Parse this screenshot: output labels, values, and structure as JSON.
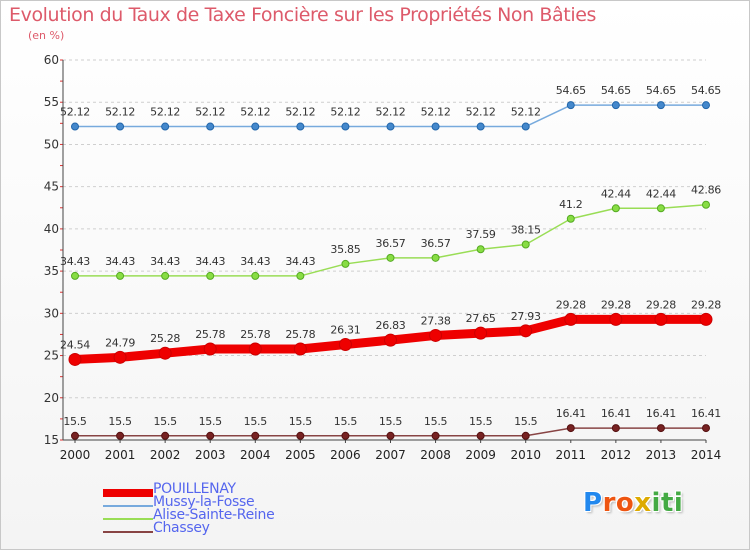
{
  "title": "Evolution du Taux de Taxe Foncière sur les Propriétés Non Bâties",
  "unit_label": "(en %)",
  "chart_data": {
    "type": "line",
    "title": "Evolution du Taux de Taxe Foncière sur les Propriétés Non Bâties",
    "ylabel": "(en %)",
    "xlabel": "",
    "x": [
      "2000",
      "2001",
      "2002",
      "2003",
      "2004",
      "2005",
      "2006",
      "2007",
      "2008",
      "2009",
      "2010",
      "2011",
      "2012",
      "2013",
      "2014"
    ],
    "ylim": [
      15,
      60
    ],
    "yticks": [
      15,
      20,
      25,
      30,
      35,
      40,
      45,
      50,
      55,
      60
    ],
    "grid": "horizontal-dashed",
    "series": [
      {
        "name": "POUILLENAY",
        "color": "#ee0000",
        "values": [
          24.54,
          24.79,
          25.28,
          25.78,
          25.78,
          25.78,
          26.31,
          26.83,
          27.38,
          27.65,
          27.93,
          29.28,
          29.28,
          29.28,
          29.28
        ]
      },
      {
        "name": "Mussy-la-Fosse",
        "color": "#77aadd",
        "values": [
          52.12,
          52.12,
          52.12,
          52.12,
          52.12,
          52.12,
          52.12,
          52.12,
          52.12,
          52.12,
          52.12,
          54.65,
          54.65,
          54.65,
          54.65
        ]
      },
      {
        "name": "Alise-Sainte-Reine",
        "color": "#99dd55",
        "values": [
          34.43,
          34.43,
          34.43,
          34.43,
          34.43,
          34.43,
          35.85,
          36.57,
          36.57,
          37.59,
          38.15,
          41.2,
          42.44,
          42.44,
          42.86
        ]
      },
      {
        "name": "Chassey",
        "color": "#884444",
        "values": [
          15.5,
          15.5,
          15.5,
          15.5,
          15.5,
          15.5,
          15.5,
          15.5,
          15.5,
          15.5,
          15.5,
          16.41,
          16.41,
          16.41,
          16.41
        ]
      }
    ],
    "legend": [
      "POUILLENAY",
      "Mussy-la-Fosse",
      "Alise-Sainte-Reine",
      "Chassey"
    ],
    "legend_position": "bottom-left"
  },
  "logo": {
    "letters": [
      "P",
      "r",
      "o",
      "x",
      "i",
      "t",
      "i"
    ],
    "colors": [
      "#2288ee",
      "#ee5511",
      "#ee5511",
      "#ddaa00",
      "#44aa44",
      "#44aa44",
      "#44aa44"
    ]
  }
}
